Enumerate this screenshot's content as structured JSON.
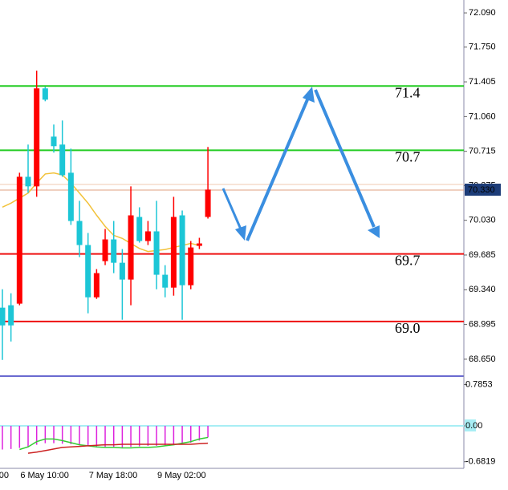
{
  "chart_data": {
    "type": "candlestick",
    "categories": [
      "00",
      null,
      "6 May 10:00",
      null,
      null,
      null,
      null,
      null,
      null,
      null,
      "7 May 18:00",
      null,
      null,
      null,
      null,
      null,
      null,
      null,
      "9 May 02:00",
      null,
      null,
      null,
      null,
      null,
      null
    ],
    "open": [
      69.162,
      69.186,
      69.202,
      70.462,
      70.367,
      71.34,
      70.861,
      70.782,
      70.502,
      70.023,
      69.784,
      69.265,
      69.624,
      69.84,
      69.608,
      69.441,
      70.063,
      69.824,
      69.92,
      69.489,
      69.361,
      70.079,
      69.385,
      69.776,
      70.063
    ],
    "high": [
      69.345,
      69.305,
      70.502,
      70.782,
      71.516,
      71.356,
      70.981,
      71.021,
      70.742,
      70.223,
      69.904,
      69.545,
      69.944,
      70.023,
      69.744,
      70.367,
      70.159,
      70.023,
      70.223,
      69.584,
      70.263,
      70.127,
      69.824,
      69.856,
      70.758
    ],
    "low": [
      68.643,
      68.826,
      69.186,
      70.303,
      70.263,
      71.212,
      70.702,
      70.462,
      69.984,
      69.664,
      69.106,
      69.249,
      69.585,
      69.505,
      69.042,
      69.186,
      69.808,
      69.784,
      69.345,
      69.265,
      69.281,
      69.042,
      69.345,
      69.744,
      70.047
    ],
    "close": [
      68.986,
      68.986,
      70.462,
      70.367,
      71.34,
      71.228,
      70.766,
      70.478,
      70.023,
      69.784,
      69.265,
      69.505,
      69.84,
      69.608,
      69.441,
      70.079,
      69.824,
      69.92,
      69.489,
      69.361,
      70.063,
      69.385,
      69.76,
      69.8,
      70.335
    ],
    "up_color": "#ff0000",
    "down_color": "#1cc6d6",
    "ma": {
      "color": "#f2c23a",
      "values": [
        70.16,
        70.2,
        70.25,
        70.3,
        70.4,
        70.49,
        70.5,
        70.48,
        70.4,
        70.3,
        70.2,
        70.08,
        69.97,
        69.88,
        69.85,
        69.8,
        69.75,
        69.72,
        69.73,
        69.74,
        69.76,
        69.78,
        69.8,
        69.78,
        null
      ]
    },
    "levels": [
      {
        "value": 71.364,
        "label": "71.4",
        "color": "#22cc22"
      },
      {
        "value": 70.725,
        "label": "70.7",
        "color": "#22cc22"
      },
      {
        "value": 69.696,
        "label": "69.7",
        "color": "#ee1111"
      },
      {
        "value": 69.025,
        "label": "69.0",
        "color": "#ee1111"
      }
    ],
    "level_label_color": "#cc33cc",
    "current_price": {
      "value": 70.33,
      "label": "70.330"
    },
    "ylim": [
      68.482,
      72.218
    ],
    "yticks": [
      {
        "value": 72.09,
        "label": "72.090"
      },
      {
        "value": 71.75,
        "label": "71.750"
      },
      71.405,
      {
        "value": 71.06,
        "label": "71.060"
      },
      70.715,
      70.375,
      {
        "value": 70.03,
        "label": "70.030"
      },
      69.685,
      {
        "value": 69.34,
        "label": "69.340"
      },
      68.995,
      {
        "value": 68.65,
        "label": "68.650"
      }
    ],
    "macd": {
      "ylim": [
        -0.93,
        0.93
      ],
      "yticks": [
        0.7853,
        {
          "value": 0,
          "label": "0.00"
        },
        -0.6819
      ],
      "histogram": {
        "color": "#dd22dd",
        "values": [
          -0.45,
          -0.44,
          -0.42,
          -0.4,
          -0.36,
          -0.33,
          -0.33,
          -0.34,
          -0.35,
          -0.36,
          -0.38,
          -0.39,
          -0.4,
          -0.4,
          -0.41,
          -0.4,
          -0.39,
          -0.38,
          -0.38,
          -0.37,
          -0.36,
          -0.35,
          -0.32,
          -0.28,
          -0.22
        ]
      },
      "series": [
        {
          "color": "#33cc33",
          "values": [
            null,
            null,
            -0.45,
            -0.4,
            -0.3,
            -0.25,
            -0.25,
            -0.28,
            -0.32,
            -0.36,
            -0.38,
            -0.4,
            -0.41,
            -0.41,
            -0.42,
            -0.42,
            -0.41,
            -0.41,
            -0.4,
            -0.38,
            -0.36,
            -0.33,
            -0.3,
            -0.25,
            -0.22
          ]
        },
        {
          "color": "#cc2222",
          "values": [
            null,
            null,
            null,
            -0.52,
            -0.5,
            -0.47,
            -0.44,
            -0.41,
            -0.4,
            -0.39,
            -0.38,
            -0.37,
            -0.36,
            -0.36,
            -0.35,
            -0.35,
            -0.35,
            -0.35,
            -0.35,
            -0.35,
            -0.35,
            -0.35,
            -0.35,
            -0.34,
            -0.33
          ]
        }
      ]
    }
  }
}
